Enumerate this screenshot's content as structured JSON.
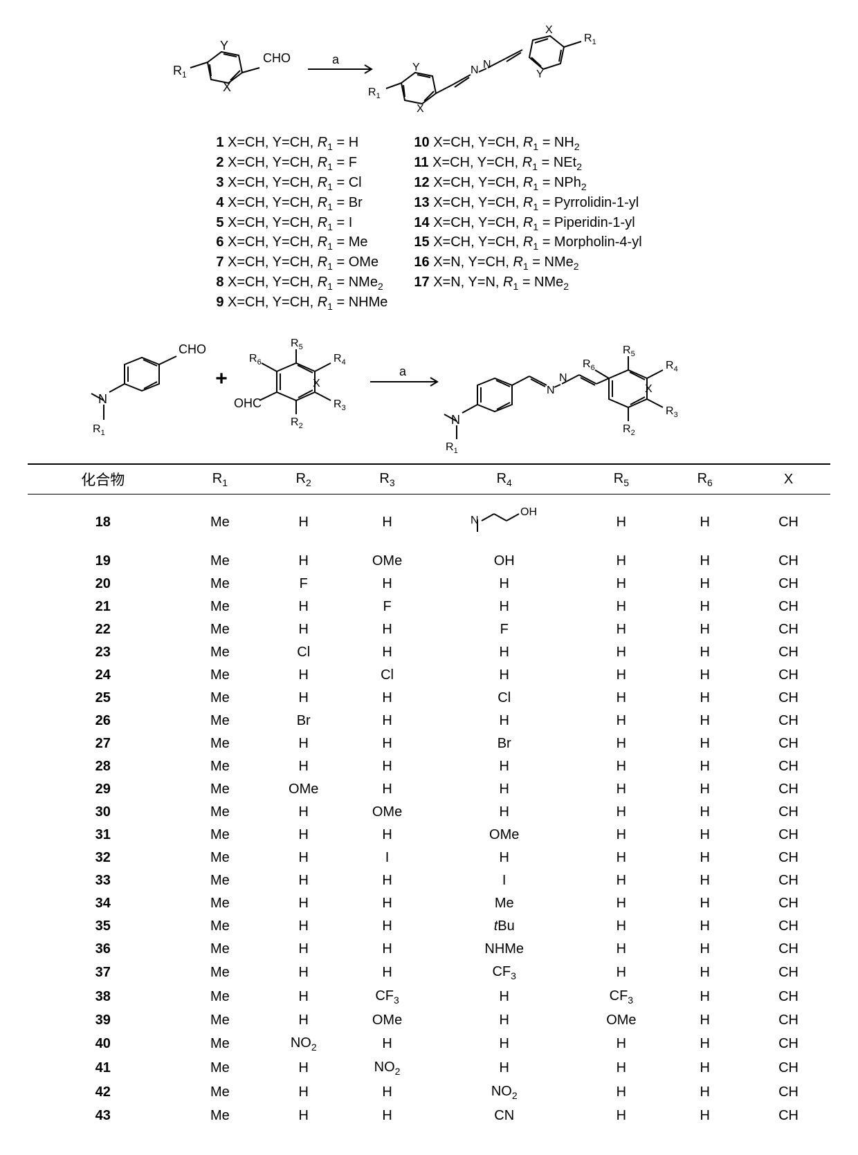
{
  "colors": {
    "fg": "#000000",
    "bg": "#ffffff"
  },
  "scheme1_label": "a",
  "scheme2_label": "a",
  "scheme1": {
    "start_sub": "CHO",
    "R1": "R",
    "R1_sub": "1",
    "X": "X",
    "Y": "Y",
    "NN": "N",
    "plus": "+"
  },
  "legend_left": [
    {
      "n": "1",
      "body": "X=CH, Y=CH, <i>R</i><sub>1</sub> = H"
    },
    {
      "n": "2",
      "body": "X=CH, Y=CH, <i>R</i><sub>1</sub> = F"
    },
    {
      "n": "3",
      "body": "X=CH, Y=CH, <i>R</i><sub>1</sub> = Cl"
    },
    {
      "n": "4",
      "body": "X=CH, Y=CH, <i>R</i><sub>1</sub> = Br"
    },
    {
      "n": "5",
      "body": "X=CH, Y=CH, <i>R</i><sub>1</sub> = I"
    },
    {
      "n": "6",
      "body": "X=CH, Y=CH, <i>R</i><sub>1</sub> = Me"
    },
    {
      "n": "7",
      "body": "X=CH, Y=CH, <i>R</i><sub>1</sub> = OMe"
    },
    {
      "n": "8",
      "body": "X=CH, Y=CH, <i>R</i><sub>1</sub> = NMe<sub>2</sub>"
    },
    {
      "n": "9",
      "body": "X=CH, Y=CH, <i>R</i><sub>1</sub> = NHMe"
    }
  ],
  "legend_right": [
    {
      "n": "10",
      "body": "X=CH, Y=CH, <i>R</i><sub>1</sub> = NH<sub>2</sub>"
    },
    {
      "n": "11",
      "body": "X=CH, Y=CH, <i>R</i><sub>1</sub> = NEt<sub>2</sub>"
    },
    {
      "n": "12",
      "body": "X=CH, Y=CH, <i>R</i><sub>1</sub> = NPh<sub>2</sub>"
    },
    {
      "n": "13",
      "body": "X=CH, Y=CH, <i>R</i><sub>1</sub> = Pyrrolidin-1-yl"
    },
    {
      "n": "14",
      "body": "X=CH, Y=CH, <i>R</i><sub>1</sub> = Piperidin-1-yl"
    },
    {
      "n": "15",
      "body": "X=CH, Y=CH, <i>R</i><sub>1</sub> = Morpholin-4-yl"
    },
    {
      "n": "16",
      "body": "X=N, Y=CH, <i>R</i><sub>1</sub> = NMe<sub>2</sub>"
    },
    {
      "n": "17",
      "body": "X=N, Y=N, <i>R</i><sub>1</sub> = NMe<sub>2</sub>"
    }
  ],
  "table": {
    "head_compound": "化合物",
    "heads": [
      "R<sub>1</sub>",
      "R<sub>2</sub>",
      "R<sub>3</sub>",
      "R<sub>4</sub>",
      "R<sub>5</sub>",
      "R<sub>6</sub>",
      "X"
    ],
    "rows": [
      {
        "cpd": "18",
        "r": [
          "Me",
          "H",
          "H",
          "__R4SVG__",
          "H",
          "H",
          "CH"
        ],
        "tall": true
      },
      {
        "cpd": "19",
        "r": [
          "Me",
          "H",
          "OMe",
          "OH",
          "H",
          "H",
          "CH"
        ]
      },
      {
        "cpd": "20",
        "r": [
          "Me",
          "F",
          "H",
          "H",
          "H",
          "H",
          "CH"
        ]
      },
      {
        "cpd": "21",
        "r": [
          "Me",
          "H",
          "F",
          "H",
          "H",
          "H",
          "CH"
        ]
      },
      {
        "cpd": "22",
        "r": [
          "Me",
          "H",
          "H",
          "F",
          "H",
          "H",
          "CH"
        ]
      },
      {
        "cpd": "23",
        "r": [
          "Me",
          "Cl",
          "H",
          "H",
          "H",
          "H",
          "CH"
        ]
      },
      {
        "cpd": "24",
        "r": [
          "Me",
          "H",
          "Cl",
          "H",
          "H",
          "H",
          "CH"
        ]
      },
      {
        "cpd": "25",
        "r": [
          "Me",
          "H",
          "H",
          "Cl",
          "H",
          "H",
          "CH"
        ]
      },
      {
        "cpd": "26",
        "r": [
          "Me",
          "Br",
          "H",
          "H",
          "H",
          "H",
          "CH"
        ]
      },
      {
        "cpd": "27",
        "r": [
          "Me",
          "H",
          "H",
          "Br",
          "H",
          "H",
          "CH"
        ]
      },
      {
        "cpd": "28",
        "r": [
          "Me",
          "H",
          "H",
          "H",
          "H",
          "H",
          "CH"
        ]
      },
      {
        "cpd": "29",
        "r": [
          "Me",
          "OMe",
          "H",
          "H",
          "H",
          "H",
          "CH"
        ]
      },
      {
        "cpd": "30",
        "r": [
          "Me",
          "H",
          "OMe",
          "H",
          "H",
          "H",
          "CH"
        ]
      },
      {
        "cpd": "31",
        "r": [
          "Me",
          "H",
          "H",
          "OMe",
          "H",
          "H",
          "CH"
        ]
      },
      {
        "cpd": "32",
        "r": [
          "Me",
          "H",
          "I",
          "H",
          "H",
          "H",
          "CH"
        ]
      },
      {
        "cpd": "33",
        "r": [
          "Me",
          "H",
          "H",
          "I",
          "H",
          "H",
          "CH"
        ]
      },
      {
        "cpd": "34",
        "r": [
          "Me",
          "H",
          "H",
          "Me",
          "H",
          "H",
          "CH"
        ]
      },
      {
        "cpd": "35",
        "r": [
          "Me",
          "H",
          "H",
          "<i>t</i>Bu",
          "H",
          "H",
          "CH"
        ]
      },
      {
        "cpd": "36",
        "r": [
          "Me",
          "H",
          "H",
          "NHMe",
          "H",
          "H",
          "CH"
        ]
      },
      {
        "cpd": "37",
        "r": [
          "Me",
          "H",
          "H",
          "CF<sub>3</sub>",
          "H",
          "H",
          "CH"
        ]
      },
      {
        "cpd": "38",
        "r": [
          "Me",
          "H",
          "CF<sub>3</sub>",
          "H",
          "CF<sub>3</sub>",
          "H",
          "CH"
        ]
      },
      {
        "cpd": "39",
        "r": [
          "Me",
          "H",
          "OMe",
          "H",
          "OMe",
          "H",
          "CH"
        ]
      },
      {
        "cpd": "40",
        "r": [
          "Me",
          "NO<sub>2</sub>",
          "H",
          "H",
          "H",
          "H",
          "CH"
        ]
      },
      {
        "cpd": "41",
        "r": [
          "Me",
          "H",
          "NO<sub>2</sub>",
          "H",
          "H",
          "H",
          "CH"
        ]
      },
      {
        "cpd": "42",
        "r": [
          "Me",
          "H",
          "H",
          "NO<sub>2</sub>",
          "H",
          "H",
          "CH"
        ]
      },
      {
        "cpd": "43",
        "r": [
          "Me",
          "H",
          "H",
          "CN",
          "H",
          "H",
          "CH"
        ]
      }
    ]
  },
  "svg_text": {
    "CHO": "CHO",
    "OHC": "OHC",
    "N": "N",
    "X": "X",
    "Y": "Y",
    "R1": "R",
    "R2": "R",
    "R3": "R",
    "R4": "R",
    "R5": "R",
    "R6": "R",
    "plus": "+",
    "OH": "OH"
  }
}
